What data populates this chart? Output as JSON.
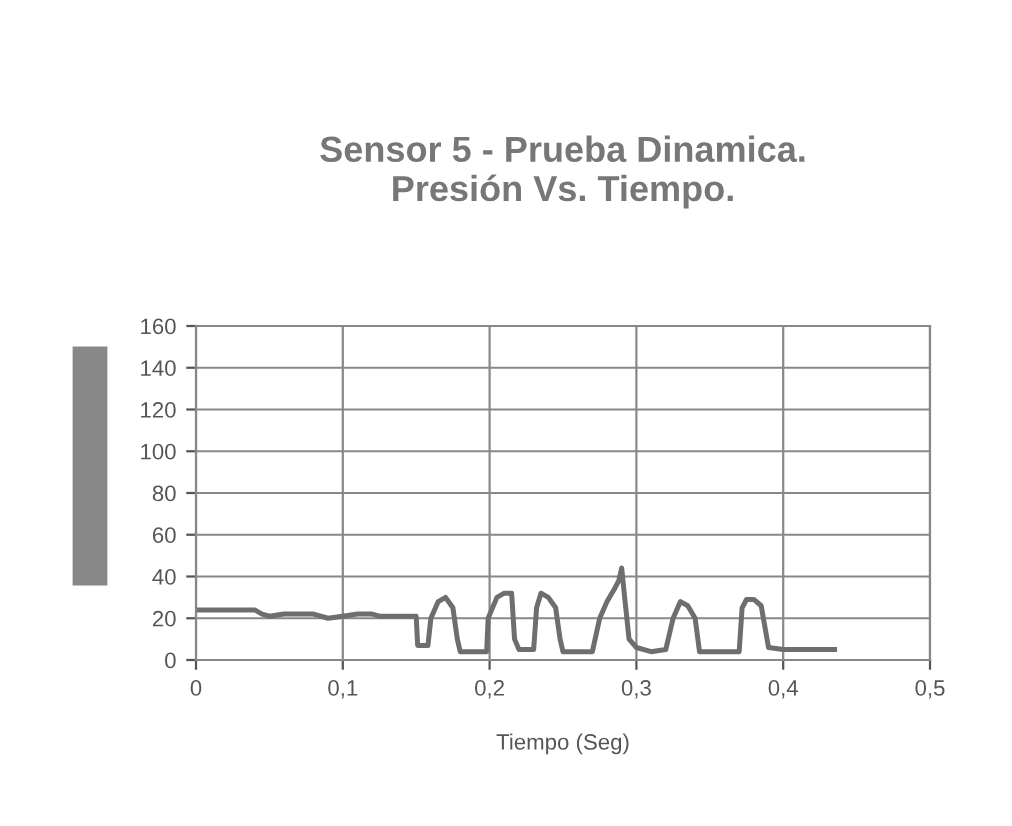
{
  "chart_data": {
    "type": "line",
    "title": "Sensor 5 - Prueba Dinamica.\nPresión Vs. Tiempo.",
    "xlabel": "Tiempo (Seg)",
    "series": [
      {
        "color": "#6e6e6e",
        "x": [
          0,
          0.02,
          0.04,
          0.045,
          0.05,
          0.06,
          0.07,
          0.08,
          0.09,
          0.1,
          0.11,
          0.12,
          0.125,
          0.15,
          0.151,
          0.158,
          0.16,
          0.165,
          0.17,
          0.175,
          0.178,
          0.18,
          0.19,
          0.198,
          0.199,
          0.205,
          0.21,
          0.215,
          0.217,
          0.22,
          0.23,
          0.232,
          0.235,
          0.24,
          0.245,
          0.248,
          0.25,
          0.27,
          0.275,
          0.28,
          0.285,
          0.288,
          0.29,
          0.292,
          0.295,
          0.3,
          0.31,
          0.32,
          0.325,
          0.33,
          0.335,
          0.34,
          0.343,
          0.36,
          0.37,
          0.372,
          0.375,
          0.38,
          0.385,
          0.39,
          0.4,
          0.42,
          0.435
        ],
        "values": [
          24,
          24,
          24,
          22,
          21,
          22,
          22,
          22,
          20,
          21,
          22,
          22,
          21,
          21,
          7,
          7,
          20,
          28,
          30,
          25,
          10,
          4,
          4,
          4,
          20,
          30,
          32,
          32,
          10,
          5,
          5,
          25,
          32,
          30,
          25,
          10,
          4,
          4,
          20,
          28,
          34,
          38,
          44,
          30,
          10,
          6,
          4,
          5,
          20,
          28,
          26,
          20,
          4,
          4,
          4,
          25,
          29,
          29,
          26,
          6,
          5,
          5,
          5
        ]
      }
    ],
    "xlim": [
      0,
      0.5
    ],
    "xticks": [
      {
        "value": 0,
        "label": "0"
      },
      {
        "value": 0.1,
        "label": "0,1"
      },
      {
        "value": 0.2,
        "label": "0,2"
      },
      {
        "value": 0.3,
        "label": "0,3"
      },
      {
        "value": 0.4,
        "label": "0,4"
      },
      {
        "value": 0.5,
        "label": "0,5"
      }
    ],
    "ylim": [
      0,
      160
    ],
    "yticks": [
      0,
      20,
      40,
      60,
      80,
      100,
      120,
      140,
      160
    ],
    "grid": true,
    "marker": "none",
    "line_style": "solid"
  }
}
